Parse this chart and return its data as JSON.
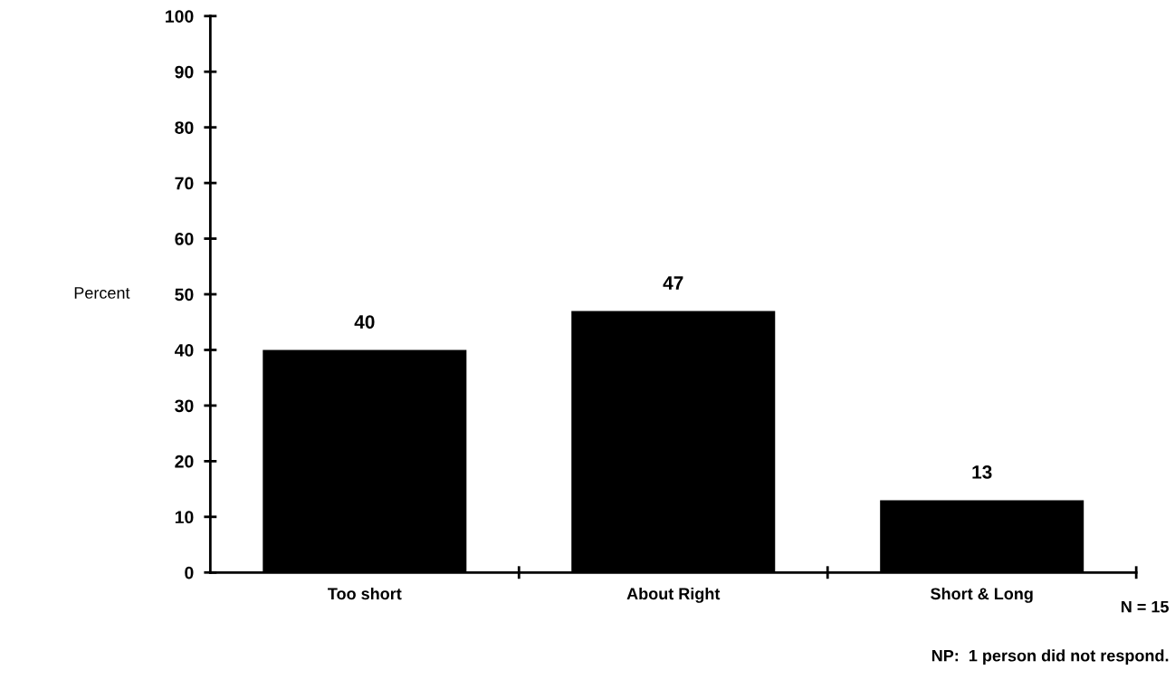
{
  "chart_data": {
    "type": "bar",
    "ylabel": "Percent",
    "categories": [
      "Too short",
      "About Right",
      "Short & Long"
    ],
    "values": [
      40,
      47,
      13
    ],
    "color": "#000000",
    "data_labels": true,
    "ylim": [
      0,
      100
    ],
    "yticks": [
      0,
      10,
      20,
      30,
      40,
      50,
      60,
      70,
      80,
      90,
      100
    ],
    "grid": false,
    "annotations": [
      "N = 15",
      "NP:  1 person did not respond."
    ]
  }
}
